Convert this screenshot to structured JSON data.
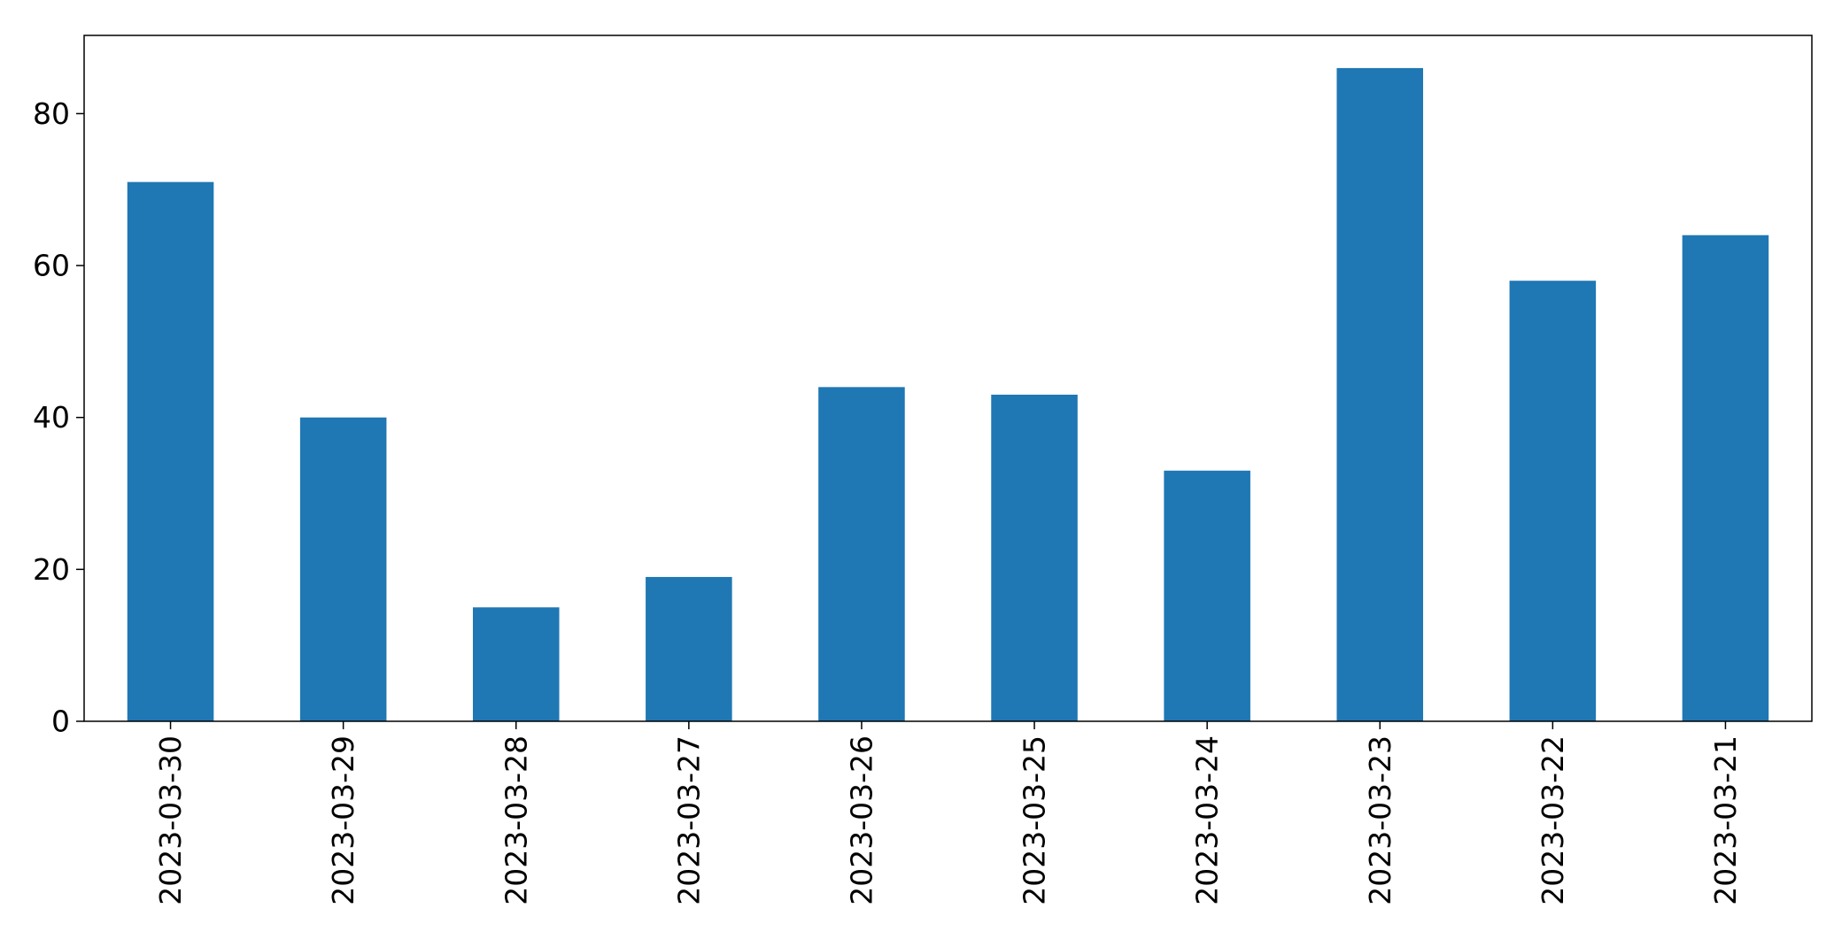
{
  "chart_data": {
    "type": "bar",
    "title": "",
    "xlabel": "",
    "ylabel": "",
    "categories": [
      "2023-03-30",
      "2023-03-29",
      "2023-03-28",
      "2023-03-27",
      "2023-03-26",
      "2023-03-25",
      "2023-03-24",
      "2023-03-23",
      "2023-03-22",
      "2023-03-21"
    ],
    "values": [
      71,
      40,
      15,
      19,
      44,
      43,
      33,
      86,
      58,
      64
    ],
    "ylim": [
      0,
      90.3
    ],
    "yticks": [
      "0",
      "20",
      "40",
      "60",
      "80"
    ],
    "grid": false,
    "legend": "none",
    "bar_color": "#1f77b4"
  }
}
